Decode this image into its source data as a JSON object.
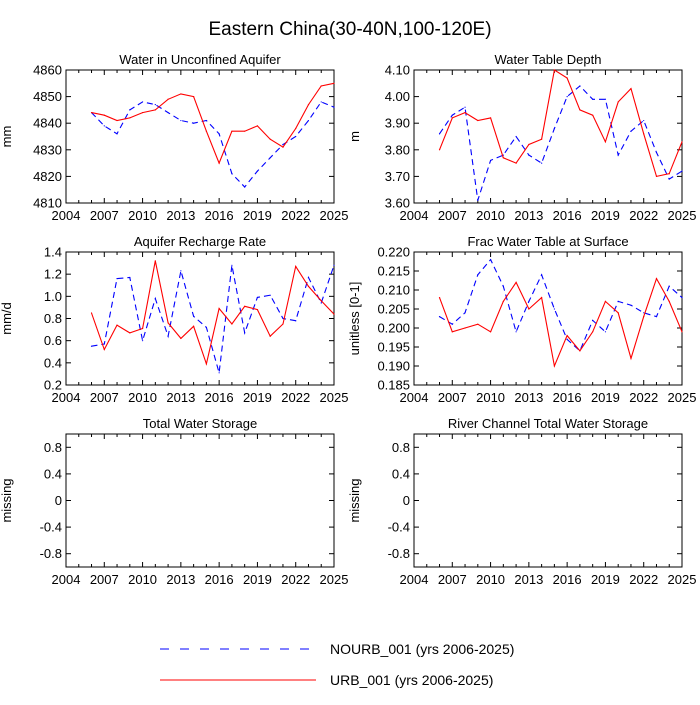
{
  "page": {
    "title": "Eastern China(30-40N,100-120E)"
  },
  "colors": {
    "nourb": "#0000ff",
    "urb": "#ff0000",
    "axis": "#000000"
  },
  "legend": [
    {
      "key": "nourb",
      "label": "NOURB_001 (yrs 2006-2025)",
      "style": "dashed"
    },
    {
      "key": "urb",
      "label": "URB_001 (yrs 2006-2025)",
      "style": "solid"
    }
  ],
  "chart_data": [
    {
      "type": "line",
      "title": "Water in Unconfined Aquifer",
      "xlabel": "",
      "ylabel": "mm",
      "xlim": [
        2004,
        2025
      ],
      "xticks": [
        2004,
        2007,
        2010,
        2013,
        2016,
        2019,
        2022,
        2025
      ],
      "ylim": [
        4810,
        4860
      ],
      "yticks": [
        4810,
        4820,
        4830,
        4840,
        4850,
        4860
      ],
      "ytick_labels": [
        "4810",
        "4820",
        "4830",
        "4840",
        "4850",
        "4860"
      ],
      "x": [
        2006,
        2007,
        2008,
        2009,
        2010,
        2011,
        2012,
        2013,
        2014,
        2015,
        2016,
        2017,
        2018,
        2019,
        2020,
        2021,
        2022,
        2023,
        2024,
        2025
      ],
      "series": [
        {
          "name": "NOURB_001",
          "key": "nourb",
          "values": [
            4844,
            4839,
            4836,
            4845,
            4848,
            4847,
            4844,
            4841,
            4840,
            4841,
            4836,
            4821,
            4816,
            4822,
            4827,
            4832,
            4835,
            4841,
            4848,
            4846
          ]
        },
        {
          "name": "URB_001",
          "key": "urb",
          "values": [
            4844,
            4843,
            4841,
            4842,
            4844,
            4845,
            4849,
            4851,
            4850,
            4837,
            4825,
            4837,
            4837,
            4839,
            4834,
            4831,
            4838,
            4847,
            4854,
            4855
          ]
        }
      ]
    },
    {
      "type": "line",
      "title": "Water Table Depth",
      "xlabel": "",
      "ylabel": "m",
      "xlim": [
        2004,
        2025
      ],
      "xticks": [
        2004,
        2007,
        2010,
        2013,
        2016,
        2019,
        2022,
        2025
      ],
      "ylim": [
        3.6,
        4.1
      ],
      "yticks": [
        3.6,
        3.7,
        3.8,
        3.9,
        4.0,
        4.1
      ],
      "ytick_labels": [
        "3.60",
        "3.70",
        "3.80",
        "3.90",
        "4.00",
        "4.10"
      ],
      "x": [
        2006,
        2007,
        2008,
        2009,
        2010,
        2011,
        2012,
        2013,
        2014,
        2015,
        2016,
        2017,
        2018,
        2019,
        2020,
        2021,
        2022,
        2023,
        2024,
        2025
      ],
      "series": [
        {
          "name": "NOURB_001",
          "key": "nourb",
          "values": [
            3.86,
            3.93,
            3.96,
            3.61,
            3.76,
            3.78,
            3.85,
            3.78,
            3.75,
            3.88,
            4.0,
            4.04,
            3.99,
            3.99,
            3.78,
            3.87,
            3.91,
            3.79,
            3.69,
            3.72
          ]
        },
        {
          "name": "URB_001",
          "key": "urb",
          "values": [
            3.8,
            3.92,
            3.94,
            3.91,
            3.92,
            3.77,
            3.75,
            3.82,
            3.84,
            4.1,
            4.07,
            3.95,
            3.93,
            3.83,
            3.98,
            4.03,
            3.86,
            3.7,
            3.71,
            3.83
          ]
        }
      ]
    },
    {
      "type": "line",
      "title": "Aquifer Recharge Rate",
      "xlabel": "",
      "ylabel": "mm/d",
      "xlim": [
        2004,
        2025
      ],
      "xticks": [
        2004,
        2007,
        2010,
        2013,
        2016,
        2019,
        2022,
        2025
      ],
      "ylim": [
        0.2,
        1.4
      ],
      "yticks": [
        0.2,
        0.4,
        0.6,
        0.8,
        1.0,
        1.2,
        1.4
      ],
      "ytick_labels": [
        "0.2",
        "0.4",
        "0.6",
        "0.8",
        "1.0",
        "1.2",
        "1.4"
      ],
      "x": [
        2006,
        2007,
        2008,
        2009,
        2010,
        2011,
        2012,
        2013,
        2014,
        2015,
        2016,
        2017,
        2018,
        2019,
        2020,
        2021,
        2022,
        2023,
        2024,
        2025
      ],
      "series": [
        {
          "name": "NOURB_001",
          "key": "nourb",
          "values": [
            0.55,
            0.57,
            1.16,
            1.17,
            0.6,
            0.98,
            0.64,
            1.23,
            0.82,
            0.72,
            0.31,
            1.28,
            0.67,
            0.99,
            1.01,
            0.8,
            0.78,
            1.17,
            0.94,
            1.28
          ]
        },
        {
          "name": "URB_001",
          "key": "urb",
          "values": [
            0.85,
            0.52,
            0.74,
            0.67,
            0.71,
            1.32,
            0.76,
            0.62,
            0.73,
            0.39,
            0.89,
            0.75,
            0.91,
            0.88,
            0.64,
            0.75,
            1.27,
            1.09,
            0.96,
            0.84
          ]
        }
      ]
    },
    {
      "type": "line",
      "title": "Frac Water Table at Surface",
      "xlabel": "",
      "ylabel": "unitless [0-1]",
      "xlim": [
        2004,
        2025
      ],
      "xticks": [
        2004,
        2007,
        2010,
        2013,
        2016,
        2019,
        2022,
        2025
      ],
      "ylim": [
        0.185,
        0.22
      ],
      "yticks": [
        0.185,
        0.19,
        0.195,
        0.2,
        0.205,
        0.21,
        0.215,
        0.22
      ],
      "ytick_labels": [
        "0.185",
        "0.190",
        "0.195",
        "0.200",
        "0.205",
        "0.210",
        "0.215",
        "0.220"
      ],
      "x": [
        2006,
        2007,
        2008,
        2009,
        2010,
        2011,
        2012,
        2013,
        2014,
        2015,
        2016,
        2017,
        2018,
        2019,
        2020,
        2021,
        2022,
        2023,
        2024,
        2025
      ],
      "series": [
        {
          "name": "NOURB_001",
          "key": "nourb",
          "values": [
            0.203,
            0.201,
            0.204,
            0.214,
            0.218,
            0.211,
            0.199,
            0.207,
            0.214,
            0.205,
            0.197,
            0.194,
            0.202,
            0.199,
            0.207,
            0.206,
            0.204,
            0.203,
            0.211,
            0.208
          ]
        },
        {
          "name": "URB_001",
          "key": "urb",
          "values": [
            0.208,
            0.199,
            0.2,
            0.201,
            0.199,
            0.207,
            0.212,
            0.205,
            0.208,
            0.19,
            0.198,
            0.194,
            0.199,
            0.207,
            0.204,
            0.192,
            0.203,
            0.213,
            0.207,
            0.199
          ]
        }
      ]
    },
    {
      "type": "line",
      "title": "Total Water Storage",
      "xlabel": "",
      "ylabel": "missing",
      "xlim": [
        2004,
        2025
      ],
      "xticks": [
        2004,
        2007,
        2010,
        2013,
        2016,
        2019,
        2022,
        2025
      ],
      "ylim": [
        -1.0,
        1.0
      ],
      "yticks": [
        -0.8,
        -0.4,
        0.0,
        0.4,
        0.8
      ],
      "ytick_labels": [
        "-0.8",
        "-0.4",
        "0",
        "0.4",
        "0.8"
      ],
      "x": [],
      "series": []
    },
    {
      "type": "line",
      "title": "River Channel Total Water Storage",
      "xlabel": "",
      "ylabel": "missing",
      "xlim": [
        2004,
        2025
      ],
      "xticks": [
        2004,
        2007,
        2010,
        2013,
        2016,
        2019,
        2022,
        2025
      ],
      "ylim": [
        -1.0,
        1.0
      ],
      "yticks": [
        -0.8,
        -0.4,
        0.0,
        0.4,
        0.8
      ],
      "ytick_labels": [
        "-0.8",
        "-0.4",
        "0",
        "0.4",
        "0.8"
      ],
      "x": [],
      "series": []
    }
  ]
}
